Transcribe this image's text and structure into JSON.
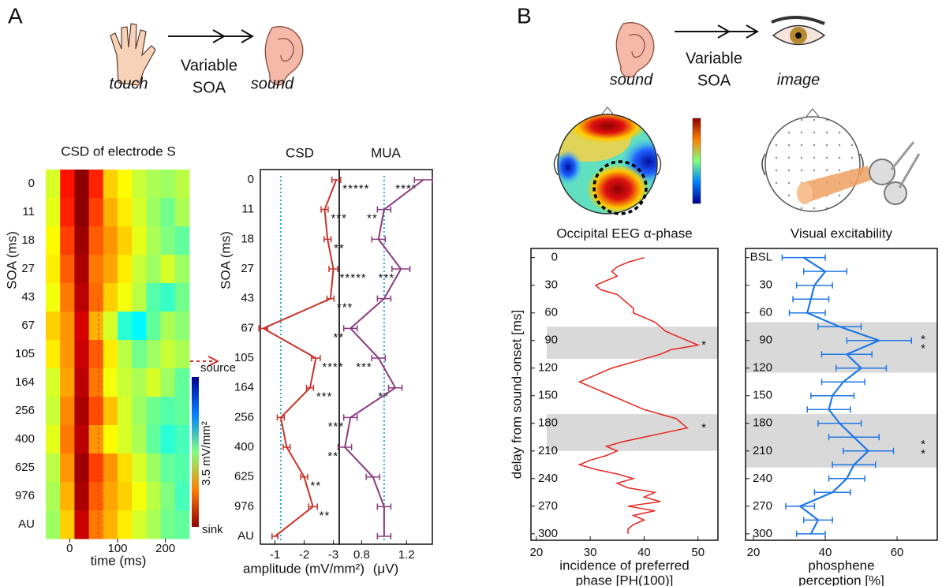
{
  "panels": [
    {
      "label": "A",
      "from": "touch",
      "interval": [
        "Variable",
        "SOA"
      ],
      "to": "sound"
    },
    {
      "label": "B",
      "from": "sound",
      "interval": [
        "Variable",
        "SOA"
      ],
      "to": "image"
    }
  ],
  "chart_data": [
    {
      "type": "heatmap",
      "title": "CSD of electrode S",
      "xlabel": "time (ms)",
      "ylabel": "SOA (ms)",
      "categories": [
        "0",
        "11",
        "18",
        "27",
        "43",
        "67",
        "105",
        "164",
        "256",
        "400",
        "625",
        "976",
        "AU"
      ],
      "bins": [
        -50,
        -20,
        10,
        40,
        70,
        100,
        130,
        160,
        190,
        220,
        250
      ],
      "xlim": [
        -50,
        250
      ],
      "xticks": [
        0,
        100,
        200
      ],
      "zlim": [
        -3.5,
        3.5
      ],
      "colorbar": {
        "top": "source",
        "unit": "3.5 mV/mm²",
        "bottom": "sink"
      },
      "values": [
        [
          -0.6,
          -2.5,
          -3.4,
          -2.4,
          -1.2,
          -0.9,
          -0.5,
          -0.3,
          -0.2,
          -0.4
        ],
        [
          -0.7,
          -2.4,
          -3.4,
          -2.2,
          -1.4,
          -1.0,
          -0.6,
          -0.2,
          0.1,
          -0.3
        ],
        [
          -0.9,
          -2.2,
          -3.3,
          -2.0,
          -1.6,
          -1.2,
          -0.7,
          -0.3,
          0.0,
          0.2
        ],
        [
          -1.0,
          -2.0,
          -3.2,
          -1.8,
          -1.5,
          -1.0,
          -0.5,
          -0.2,
          -0.6,
          -0.2
        ],
        [
          -0.8,
          -1.8,
          -3.1,
          -1.9,
          -1.2,
          -0.8,
          -0.4,
          0.3,
          0.5,
          0.1
        ],
        [
          -1.2,
          -1.6,
          -2.9,
          -1.4,
          -0.6,
          0.6,
          0.9,
          0.2,
          -0.3,
          -0.1
        ],
        [
          -1.0,
          -1.6,
          -3.0,
          -2.0,
          -1.0,
          -0.4,
          0.1,
          -0.2,
          -0.5,
          -0.3
        ],
        [
          -0.6,
          -1.5,
          -3.1,
          -1.8,
          -0.8,
          -0.5,
          -0.3,
          -0.6,
          -0.2,
          0.2
        ],
        [
          -0.5,
          -1.7,
          -3.2,
          -2.1,
          -1.3,
          -0.6,
          -0.2,
          0.1,
          0.3,
          0.2
        ],
        [
          -0.7,
          -1.8,
          -3.1,
          -1.6,
          -0.9,
          -0.6,
          -0.3,
          0.2,
          0.6,
          0.4
        ],
        [
          -0.4,
          -1.6,
          -3.3,
          -2.2,
          -1.6,
          -1.1,
          -0.6,
          -0.2,
          0.2,
          0.3
        ],
        [
          -0.3,
          -1.4,
          -3.2,
          -2.0,
          -1.5,
          -1.2,
          -0.8,
          -0.4,
          0.0,
          0.4
        ],
        [
          -0.2,
          -1.2,
          -3.0,
          -1.8,
          -1.4,
          -1.0,
          -0.6,
          -0.3,
          0.1,
          0.2
        ]
      ]
    },
    {
      "type": "line",
      "title": "CSD",
      "xlabel": "amplitude (mV/mm²)",
      "ylabel": "SOA (ms)",
      "color": "#c8322a",
      "categories": [
        "0",
        "11",
        "18",
        "27",
        "43",
        "67",
        "105",
        "164",
        "256",
        "400",
        "625",
        "976",
        "AU"
      ],
      "values": [
        -3.1,
        -2.7,
        -2.8,
        -3.0,
        -2.9,
        -0.6,
        -2.4,
        -2.2,
        -1.2,
        -1.4,
        -2.0,
        -2.3,
        -1.0
      ],
      "errors": [
        0.15,
        0.12,
        0.12,
        0.15,
        0.12,
        0.15,
        0.15,
        0.12,
        0.12,
        0.12,
        0.12,
        0.15,
        0.1
      ],
      "sig_labels": [
        "*****",
        "***",
        "**",
        "*****",
        "***",
        null,
        "****",
        "***",
        null,
        null,
        "**",
        "**",
        null
      ],
      "reference": -1.2,
      "xlim": [
        -0.5,
        -3.2
      ],
      "xticks": [
        -1,
        -2,
        -3
      ]
    },
    {
      "type": "line",
      "title": "MUA",
      "xlabel": "(μV)",
      "color": "#8a3a80",
      "values": [
        1.35,
        1.0,
        0.95,
        1.15,
        1.0,
        0.7,
        0.95,
        1.1,
        0.7,
        0.65,
        0.9,
        1.0,
        1.0
      ],
      "errors": [
        0.08,
        0.06,
        0.06,
        0.08,
        0.06,
        0.06,
        0.06,
        0.06,
        0.06,
        0.06,
        0.06,
        0.06,
        0.06
      ],
      "sig_labels": [
        "****",
        "**",
        null,
        "***",
        null,
        "**",
        "***",
        "**",
        "***",
        "**",
        null,
        null,
        null
      ],
      "reference": 1.0,
      "xlim": [
        0.6,
        1.43
      ],
      "xticks": [
        0.8,
        1.2
      ]
    },
    {
      "type": "line",
      "title": "Occipital EEG α-phase",
      "ylabel": "delay from sound-onset [ms]",
      "xlabel": [
        "incidence of preferred",
        "phase [PH(100)]"
      ],
      "color": "#e8241e",
      "y": [
        0,
        5,
        10,
        15,
        20,
        25,
        30,
        35,
        40,
        45,
        50,
        55,
        60,
        65,
        70,
        75,
        80,
        85,
        90,
        95,
        100,
        105,
        110,
        115,
        120,
        125,
        130,
        135,
        140,
        145,
        150,
        155,
        160,
        165,
        170,
        175,
        180,
        185,
        190,
        195,
        200,
        205,
        210,
        215,
        220,
        225,
        230,
        235,
        240,
        245,
        250,
        255,
        260,
        265,
        270,
        275,
        280,
        285,
        290,
        295,
        300
      ],
      "values": [
        40,
        37,
        35,
        34,
        35,
        33,
        31,
        32,
        35,
        36,
        37,
        38,
        38,
        40,
        42,
        43,
        44,
        46,
        48,
        50,
        45,
        43,
        40,
        37,
        34,
        32,
        30,
        28,
        30,
        32,
        34,
        36,
        38,
        40,
        43,
        46,
        47,
        48,
        44,
        40,
        36,
        33,
        35,
        33,
        30,
        28,
        31,
        35,
        38,
        35,
        37,
        42,
        40,
        43,
        37,
        42,
        38,
        40,
        38,
        37,
        37
      ],
      "xlim": [
        19,
        53.7
      ],
      "xticks": [
        20,
        30,
        40,
        50
      ],
      "ylim": [
        -10,
        307
      ],
      "yticks": [
        0,
        30,
        60,
        90,
        120,
        150,
        180,
        210,
        240,
        270,
        300
      ],
      "shaded": [
        [
          75,
          110
        ],
        [
          170,
          210
        ]
      ],
      "annotations": [
        {
          "text": "*",
          "y": 92
        },
        {
          "text": "*",
          "y": 182
        }
      ]
    },
    {
      "type": "line",
      "title": "Visual excitability",
      "xlabel": [
        "phosphene",
        "perception [%]"
      ],
      "color": "#1f78e6",
      "y": [
        0,
        15,
        30,
        45,
        60,
        75,
        90,
        105,
        120,
        135,
        150,
        165,
        180,
        195,
        210,
        225,
        240,
        255,
        270,
        285,
        300
      ],
      "values": [
        34,
        40,
        37,
        36,
        35,
        44,
        55,
        46,
        50,
        45,
        42,
        41,
        44,
        48,
        52,
        48,
        46,
        42,
        33,
        38,
        36
      ],
      "errors": [
        6,
        6,
        5,
        5,
        5,
        6,
        9,
        7,
        7,
        6,
        6,
        6,
        6,
        7,
        7,
        6,
        5,
        5,
        4,
        4,
        4
      ],
      "xlim": [
        17.8,
        71.2
      ],
      "xticks": [
        20,
        40,
        60
      ],
      "ylim": [
        -10,
        307
      ],
      "yticks": [
        {
          "value": 0,
          "label": "BSL"
        },
        30,
        60,
        90,
        120,
        150,
        180,
        210,
        240,
        270,
        300
      ],
      "shaded": [
        [
          70,
          125
        ],
        [
          170,
          228
        ]
      ],
      "annotations": [
        {
          "text": "*",
          "y": 86
        },
        {
          "text": "*",
          "y": 96
        },
        {
          "text": "*",
          "y": 200
        },
        {
          "text": "*",
          "y": 210
        }
      ]
    }
  ]
}
